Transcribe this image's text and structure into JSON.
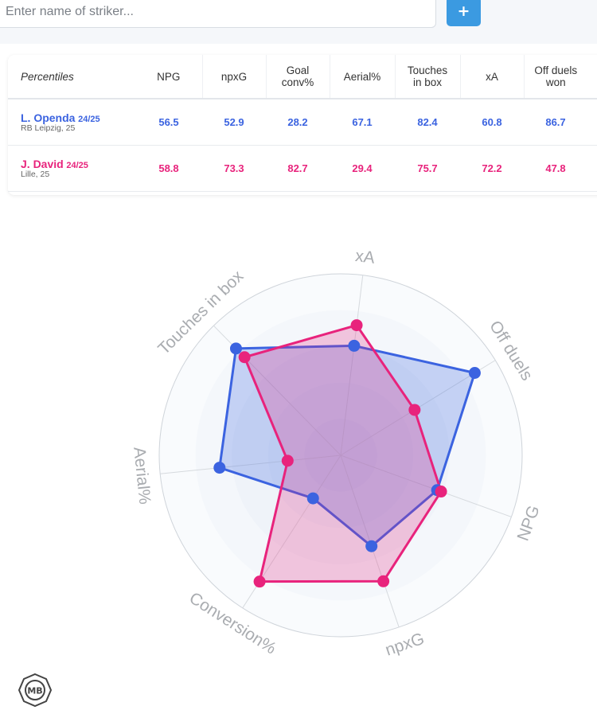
{
  "search": {
    "placeholder": "Enter name of striker...",
    "add_label": "+"
  },
  "table": {
    "headers": [
      {
        "line1": "Percentiles",
        "line2": ""
      },
      {
        "line1": "NPG",
        "line2": ""
      },
      {
        "line1": "npxG",
        "line2": ""
      },
      {
        "line1": "Goal",
        "line2": "conv%"
      },
      {
        "line1": "Aerial%",
        "line2": ""
      },
      {
        "line1": "Touches",
        "line2": "in box"
      },
      {
        "line1": "xA",
        "line2": ""
      },
      {
        "line1": "Off duels",
        "line2": "won"
      }
    ],
    "rows": [
      {
        "name": "L. Openda",
        "season": "24/25",
        "club": "RB Leipzig, 25",
        "color": "#3b63e0",
        "values": [
          "56.5",
          "52.9",
          "28.2",
          "67.1",
          "82.4",
          "60.8",
          "86.7"
        ]
      },
      {
        "name": "J. David",
        "season": "24/25",
        "club": "Lille, 25",
        "color": "#e8237c",
        "values": [
          "58.8",
          "73.3",
          "82.7",
          "29.4",
          "75.7",
          "72.2",
          "47.8"
        ]
      }
    ]
  },
  "chart_data": {
    "type": "radar",
    "axes": [
      "xA",
      "Off duels",
      "NPG",
      "npxG",
      "Conversion%",
      "Aerial%",
      "Touches in box"
    ],
    "range": [
      0,
      100
    ],
    "series": [
      {
        "name": "L. Openda",
        "color": "#3b63e0",
        "values": [
          60.8,
          86.7,
          56.5,
          52.9,
          28.2,
          67.1,
          82.4
        ]
      },
      {
        "name": "J. David",
        "color": "#e8237c",
        "values": [
          72.2,
          47.8,
          58.8,
          73.3,
          82.7,
          29.4,
          75.7
        ]
      }
    ]
  },
  "logo": {
    "text": "MB"
  }
}
